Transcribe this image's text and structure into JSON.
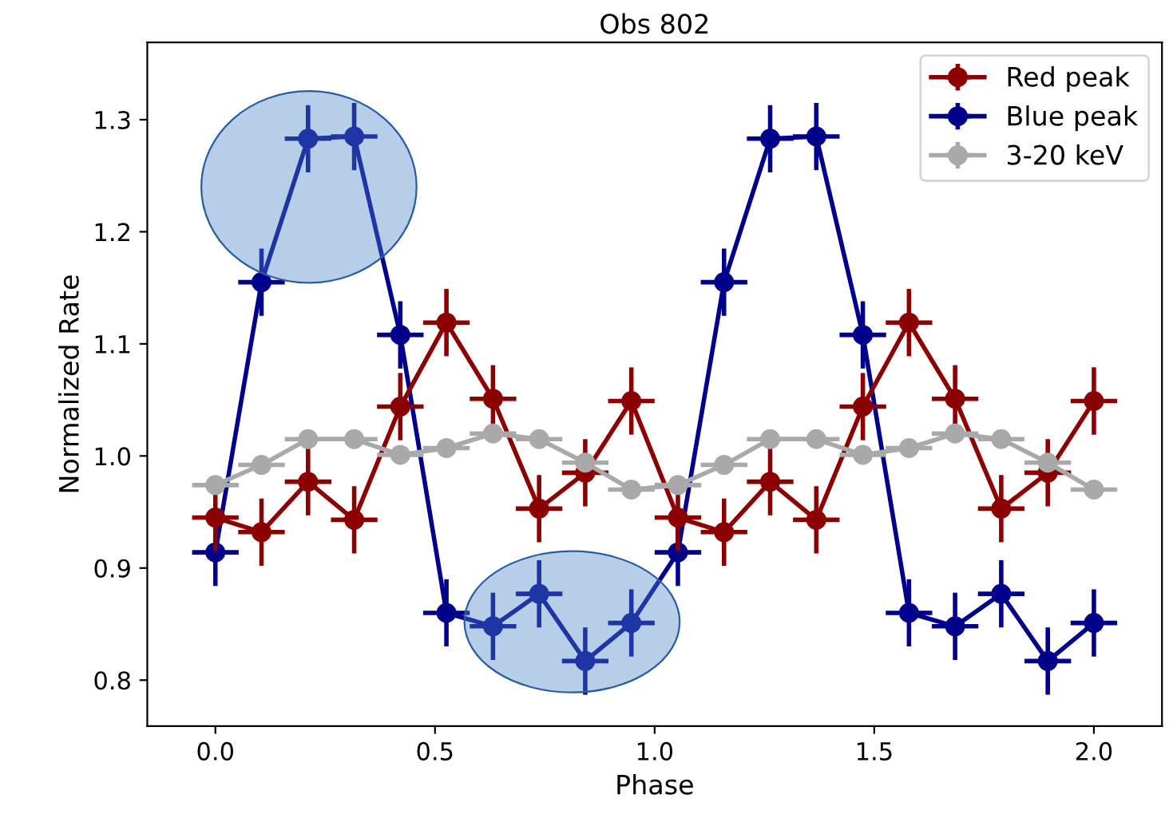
{
  "chart_data": {
    "type": "line",
    "title": "Obs 802",
    "xlabel": "Phase",
    "ylabel": "Normalized Rate",
    "x": [
      0,
      0.105,
      0.211,
      0.316,
      0.421,
      0.526,
      0.632,
      0.737,
      0.842,
      0.947,
      1.053,
      1.158,
      1.263,
      1.368,
      1.474,
      1.579,
      1.684,
      1.789,
      1.895,
      2.0
    ],
    "series": [
      {
        "name": "Red peak",
        "color": "#8b0000",
        "values": [
          0.945,
          0.932,
          0.977,
          0.943,
          1.044,
          1.119,
          1.051,
          0.953,
          0.985,
          1.049,
          0.945,
          0.932,
          0.977,
          0.943,
          1.044,
          1.119,
          1.051,
          0.953,
          0.985,
          1.049
        ],
        "errors": [
          0.03,
          0.03,
          0.03,
          0.03,
          0.03,
          0.03,
          0.03,
          0.03,
          0.03,
          0.03,
          0.03,
          0.03,
          0.03,
          0.03,
          0.03,
          0.03,
          0.03,
          0.03,
          0.03,
          0.03
        ],
        "xerrors": [
          0.053,
          0.053,
          0.053,
          0.053,
          0.053,
          0.053,
          0.053,
          0.053,
          0.053,
          0.053,
          0.053,
          0.053,
          0.053,
          0.053,
          0.053,
          0.053,
          0.053,
          0.053,
          0.053,
          0.053
        ]
      },
      {
        "name": "Blue peak",
        "color": "#00008b",
        "values": [
          0.914,
          1.155,
          1.283,
          1.285,
          1.108,
          0.86,
          0.848,
          0.877,
          0.817,
          0.851,
          0.914,
          1.155,
          1.283,
          1.285,
          1.108,
          0.86,
          0.848,
          0.877,
          0.817,
          0.851
        ],
        "errors": [
          0.03,
          0.03,
          0.03,
          0.03,
          0.03,
          0.03,
          0.03,
          0.03,
          0.03,
          0.03,
          0.03,
          0.03,
          0.03,
          0.03,
          0.03,
          0.03,
          0.03,
          0.03,
          0.03,
          0.03
        ],
        "xerrors": [
          0.053,
          0.053,
          0.053,
          0.053,
          0.053,
          0.053,
          0.053,
          0.053,
          0.053,
          0.053,
          0.053,
          0.053,
          0.053,
          0.053,
          0.053,
          0.053,
          0.053,
          0.053,
          0.053,
          0.053
        ]
      },
      {
        "name": "3-20 keV",
        "color": "#a9a9a9",
        "values": [
          0.974,
          0.992,
          1.015,
          1.015,
          1.001,
          1.007,
          1.02,
          1.015,
          0.994,
          0.97,
          0.974,
          0.992,
          1.015,
          1.015,
          1.001,
          1.007,
          1.02,
          1.015,
          0.994,
          0.97
        ],
        "errors": [
          0.005,
          0.005,
          0.005,
          0.005,
          0.005,
          0.005,
          0.005,
          0.005,
          0.005,
          0.005,
          0.005,
          0.005,
          0.005,
          0.005,
          0.005,
          0.005,
          0.005,
          0.005,
          0.005,
          0.005
        ],
        "xerrors": [
          0.053,
          0.053,
          0.053,
          0.053,
          0.053,
          0.053,
          0.053,
          0.053,
          0.053,
          0.053,
          0.053,
          0.053,
          0.053,
          0.053,
          0.053,
          0.053,
          0.053,
          0.053,
          0.053,
          0.053
        ]
      }
    ],
    "xlim": [
      -0.155,
      2.155
    ],
    "xticks": [
      {
        "value": 0,
        "label": "0.0"
      },
      0.5,
      {
        "value": 1,
        "label": "1.0"
      },
      1.5,
      {
        "value": 2,
        "label": "2.0"
      }
    ],
    "ylim": [
      0.759,
      1.369
    ],
    "yticks": [
      0.8,
      0.9,
      {
        "value": 1,
        "label": "1.0"
      },
      1.1,
      1.2,
      1.3
    ],
    "marker": "circle",
    "line_style": "solid",
    "legend": "top right",
    "grid": false
  }
}
